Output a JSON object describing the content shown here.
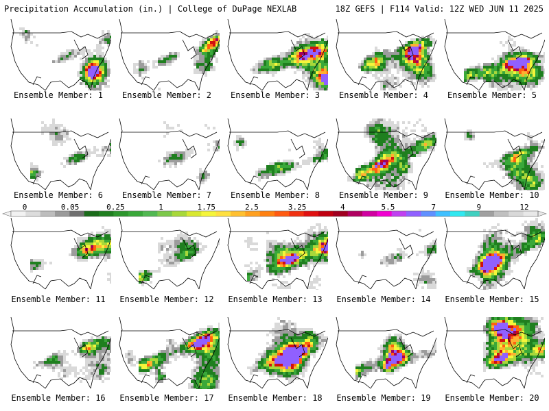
{
  "header": {
    "left": "Precipitation Accumulation (in.) | College of DuPage NEXLAB",
    "right": "18Z GEFS | F114 Valid: 12Z WED JUN 11 2025"
  },
  "member_label": "Ensemble Member:",
  "members": [
    {
      "number": "1"
    },
    {
      "number": "2"
    },
    {
      "number": "3"
    },
    {
      "number": "4"
    },
    {
      "number": "5"
    },
    {
      "number": "6"
    },
    {
      "number": "7"
    },
    {
      "number": "8"
    },
    {
      "number": "9"
    },
    {
      "number": "10"
    },
    {
      "number": "11"
    },
    {
      "number": "12"
    },
    {
      "number": "13"
    },
    {
      "number": "14"
    },
    {
      "number": "15"
    },
    {
      "number": "16"
    },
    {
      "number": "17"
    },
    {
      "number": "18"
    },
    {
      "number": "19"
    },
    {
      "number": "20"
    }
  ],
  "colorbar": {
    "labels": [
      "0",
      "0.05",
      "0.25",
      "1",
      "1.75",
      "2.5",
      "3.25",
      "4",
      "5.5",
      "7",
      "9",
      "12"
    ],
    "colors": [
      "#f2f2f2",
      "#dcdcdc",
      "#bdbdbd",
      "#9a9a9a",
      "#6f6f6f",
      "#1a6b1a",
      "#1f7f1f",
      "#2d962d",
      "#3aa83a",
      "#52b852",
      "#7cc84a",
      "#a8d83a",
      "#d8e830",
      "#f5f53a",
      "#ffe040",
      "#ffc030",
      "#ffa020",
      "#ff8010",
      "#ff5a10",
      "#f03010",
      "#e01010",
      "#c00010",
      "#a00020",
      "#b00060",
      "#d000a0",
      "#f000d0",
      "#c040f0",
      "#9060ff",
      "#6090ff",
      "#40c0ff",
      "#30e8f0",
      "#40d0c0",
      "#a0a0a0",
      "#c0c0c0",
      "#d8d8d8",
      "#e8e8e8"
    ]
  }
}
